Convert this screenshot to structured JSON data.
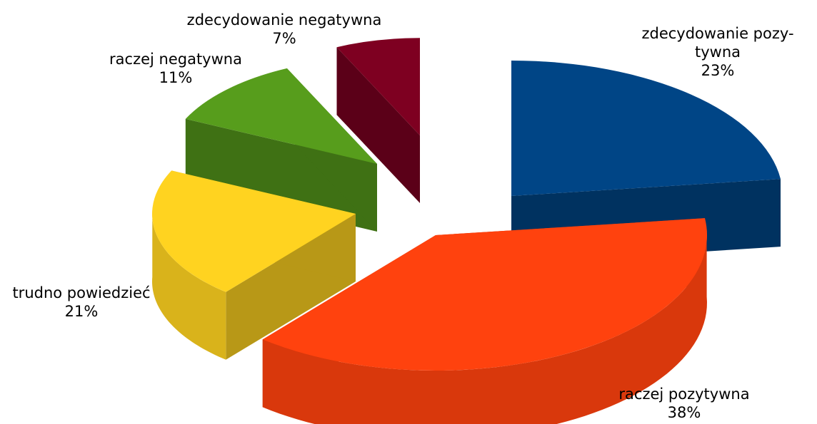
{
  "chart_data": {
    "type": "pie",
    "title": "",
    "style": "3d-exploded",
    "legend": "none",
    "slices": [
      {
        "label": "zdecydowanie pozytywna",
        "label_lines": [
          "zdecydowanie pozy-",
          "tywna"
        ],
        "value": 23,
        "value_label": "23%",
        "color": "#004586"
      },
      {
        "label": "raczej pozytywna",
        "label_lines": [
          "raczej pozytywna"
        ],
        "value": 38,
        "value_label": "38%",
        "color": "#ff420e"
      },
      {
        "label": "trudno powiedzieć",
        "label_lines": [
          "trudno powiedzieć"
        ],
        "value": 21,
        "value_label": "21%",
        "color": "#ffd320"
      },
      {
        "label": "raczej negatywna",
        "label_lines": [
          "raczej negatywna"
        ],
        "value": 11,
        "value_label": "11%",
        "color": "#579d1c"
      },
      {
        "label": "zdecydowanie negatywna",
        "label_lines": [
          "zdecydowanie negatywna"
        ],
        "value": 7,
        "value_label": "7%",
        "color": "#7e0021"
      }
    ]
  }
}
